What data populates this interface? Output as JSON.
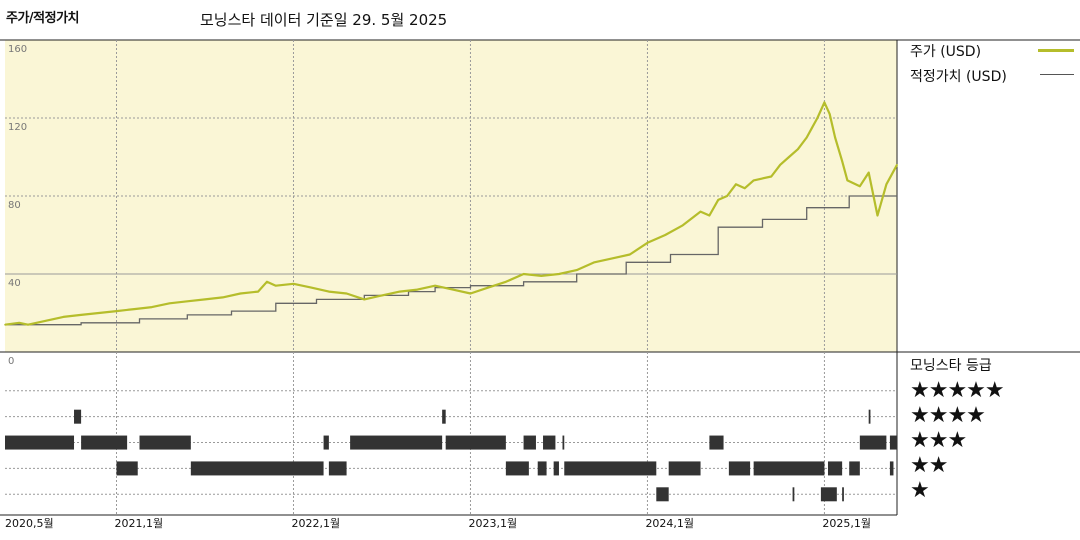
{
  "header": {
    "title": "주가/적정가치",
    "subtitle": "모닝스타 데이터 기준일 29. 5월 2025"
  },
  "legend": {
    "price_label": "주가 (USD)",
    "fair_label": "적정가치 (USD)",
    "rating_title": "모닝스타 등급",
    "stars": [
      "★★★★★",
      "★★★★",
      "★★★",
      "★★",
      "★"
    ]
  },
  "colors": {
    "price": "#b5bd2b",
    "fair": "#666666",
    "panel_bg": "#faf6d6",
    "grid": "#9a9a9a",
    "rating_bar": "#333333"
  },
  "chart_data": [
    {
      "type": "line",
      "x_ticks": [
        "2020,5월",
        "2021,1월",
        "2022,1월",
        "2023,1월",
        "2024,1월",
        "2025,1월"
      ],
      "tick_dates": [
        2020.37,
        2021.0,
        2022.0,
        2023.0,
        2024.0,
        2025.0
      ],
      "xlim": [
        2020.37,
        2025.41
      ],
      "y_ticks": [
        "160",
        "120",
        "80",
        "40",
        "0"
      ],
      "ylim": [
        0,
        160
      ],
      "grid": true,
      "series": [
        {
          "name": "주가 (USD)",
          "x": [
            2020.37,
            2020.45,
            2020.5,
            2020.6,
            2020.7,
            2020.8,
            2020.9,
            2021.0,
            2021.1,
            2021.2,
            2021.3,
            2021.4,
            2021.5,
            2021.6,
            2021.7,
            2021.8,
            2021.85,
            2021.9,
            2022.0,
            2022.1,
            2022.2,
            2022.3,
            2022.4,
            2022.5,
            2022.6,
            2022.7,
            2022.8,
            2022.9,
            2023.0,
            2023.1,
            2023.2,
            2023.3,
            2023.4,
            2023.5,
            2023.6,
            2023.7,
            2023.8,
            2023.9,
            2024.0,
            2024.1,
            2024.2,
            2024.3,
            2024.35,
            2024.4,
            2024.45,
            2024.5,
            2024.55,
            2024.6,
            2024.7,
            2024.75,
            2024.8,
            2024.85,
            2024.9,
            2024.93,
            2024.96,
            2025.0,
            2025.03,
            2025.06,
            2025.1,
            2025.13,
            2025.2,
            2025.25,
            2025.3,
            2025.35,
            2025.41
          ],
          "y": [
            14,
            15,
            14,
            16,
            18,
            19,
            20,
            21,
            22,
            23,
            25,
            26,
            27,
            28,
            30,
            31,
            36,
            34,
            35,
            33,
            31,
            30,
            27,
            29,
            31,
            32,
            34,
            32,
            30,
            33,
            36,
            40,
            39,
            40,
            42,
            46,
            48,
            50,
            56,
            60,
            65,
            72,
            70,
            78,
            80,
            86,
            84,
            88,
            90,
            96,
            100,
            104,
            110,
            115,
            120,
            128,
            122,
            110,
            98,
            88,
            85,
            92,
            70,
            86,
            96
          ]
        },
        {
          "name": "적정가치 (USD)",
          "x": [
            2020.37,
            2020.8,
            2020.8,
            2021.13,
            2021.13,
            2021.4,
            2021.4,
            2021.65,
            2021.65,
            2021.9,
            2021.9,
            2022.13,
            2022.13,
            2022.4,
            2022.4,
            2022.65,
            2022.65,
            2022.8,
            2022.8,
            2023.0,
            2023.0,
            2023.3,
            2023.3,
            2023.6,
            2023.6,
            2023.88,
            2023.88,
            2024.13,
            2024.13,
            2024.4,
            2024.4,
            2024.65,
            2024.65,
            2024.9,
            2024.9,
            2025.14,
            2025.14,
            2025.41
          ],
          "y": [
            14,
            14,
            15,
            15,
            17,
            17,
            19,
            19,
            21,
            21,
            25,
            25,
            27,
            27,
            29,
            29,
            31,
            31,
            33,
            33,
            34,
            34,
            36,
            36,
            40,
            40,
            46,
            46,
            50,
            50,
            64,
            64,
            68,
            68,
            74,
            74,
            80,
            80
          ]
        }
      ]
    },
    {
      "type": "timeline",
      "title": "모닝스타 등급",
      "levels": [
        5,
        4,
        3,
        2,
        1
      ],
      "segments": [
        {
          "stars": 4,
          "start": 2020.76,
          "end": 2020.8
        },
        {
          "stars": 3,
          "start": 2020.37,
          "end": 2020.76
        },
        {
          "stars": 3,
          "start": 2020.8,
          "end": 2021.06
        },
        {
          "stars": 2,
          "start": 2021.0,
          "end": 2021.12
        },
        {
          "stars": 3,
          "start": 2021.13,
          "end": 2021.42
        },
        {
          "stars": 2,
          "start": 2021.42,
          "end": 2022.17
        },
        {
          "stars": 2,
          "start": 2022.2,
          "end": 2022.3
        },
        {
          "stars": 3,
          "start": 2022.17,
          "end": 2022.2
        },
        {
          "stars": 3,
          "start": 2022.32,
          "end": 2022.84
        },
        {
          "stars": 4,
          "start": 2022.84,
          "end": 2022.86
        },
        {
          "stars": 3,
          "start": 2022.86,
          "end": 2023.2
        },
        {
          "stars": 3,
          "start": 2023.3,
          "end": 2023.37
        },
        {
          "stars": 3,
          "start": 2023.41,
          "end": 2023.48
        },
        {
          "stars": 3,
          "start": 2023.52,
          "end": 2023.53
        },
        {
          "stars": 2,
          "start": 2023.2,
          "end": 2023.33
        },
        {
          "stars": 2,
          "start": 2023.38,
          "end": 2023.43
        },
        {
          "stars": 2,
          "start": 2023.47,
          "end": 2023.5
        },
        {
          "stars": 2,
          "start": 2023.53,
          "end": 2024.05
        },
        {
          "stars": 1,
          "start": 2024.05,
          "end": 2024.12
        },
        {
          "stars": 2,
          "start": 2024.12,
          "end": 2024.3
        },
        {
          "stars": 3,
          "start": 2024.35,
          "end": 2024.43
        },
        {
          "stars": 2,
          "start": 2024.46,
          "end": 2024.58
        },
        {
          "stars": 2,
          "start": 2024.6,
          "end": 2025.0
        },
        {
          "stars": 1,
          "start": 2024.82,
          "end": 2024.83
        },
        {
          "stars": 1,
          "start": 2024.98,
          "end": 2025.07
        },
        {
          "stars": 1,
          "start": 2025.1,
          "end": 2025.11
        },
        {
          "stars": 2,
          "start": 2025.02,
          "end": 2025.1
        },
        {
          "stars": 2,
          "start": 2025.14,
          "end": 2025.2
        },
        {
          "stars": 4,
          "start": 2025.25,
          "end": 2025.26
        },
        {
          "stars": 3,
          "start": 2025.2,
          "end": 2025.35
        },
        {
          "stars": 3,
          "start": 2025.37,
          "end": 2025.41
        },
        {
          "stars": 2,
          "start": 2025.37,
          "end": 2025.39
        }
      ]
    }
  ]
}
